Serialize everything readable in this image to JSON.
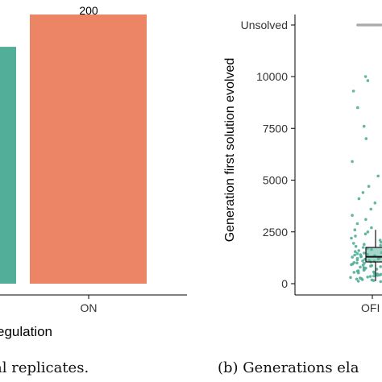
{
  "chart_data": [
    {
      "type": "bar",
      "categories": [
        "",
        "ON"
      ],
      "values": [
        176,
        200
      ],
      "data_labels": [
        "",
        "200"
      ],
      "colors": [
        "#52ae98",
        "#eb8566"
      ],
      "xlabel": "egulation",
      "ylabel": "",
      "ylim": [
        0,
        200
      ],
      "grid": false,
      "caption": "al replicates."
    },
    {
      "type": "scatter",
      "categories": [
        "OFF"
      ],
      "category_label": "OFI",
      "ylabel": "Generation first solution evolved",
      "yticks": [
        0,
        2500,
        5000,
        7500,
        10000
      ],
      "ytick_labels": [
        "0",
        "2500",
        "5000",
        "7500",
        "10000",
        "Unsolved"
      ],
      "unsolved_label": "Unsolved",
      "point_color": "#52ae98",
      "unsolved_color": "#aaaaaa",
      "box": {
        "whisker_low": 120,
        "q1": 1050,
        "median": 1300,
        "q3": 1750,
        "whisker_high": 2600,
        "box_color": "#5bb79d"
      },
      "points_solved": [
        10000,
        9800,
        9300,
        8500,
        7600,
        7000,
        5900,
        5200,
        4700,
        4400,
        4100,
        3900,
        3600,
        3300,
        3100,
        2900,
        2700,
        2600,
        2500,
        2400,
        2300,
        2200,
        2100,
        2000,
        1950,
        1900,
        1850,
        1800,
        1750,
        1700,
        1650,
        1600,
        1550,
        1500,
        1480,
        1450,
        1420,
        1400,
        1380,
        1350,
        1320,
        1300,
        1280,
        1250,
        1220,
        1200,
        1180,
        1150,
        1120,
        1100,
        1080,
        1050,
        1020,
        1000,
        980,
        950,
        920,
        900,
        870,
        850,
        820,
        800,
        780,
        750,
        720,
        700,
        680,
        650,
        620,
        600,
        570,
        550,
        520,
        500,
        470,
        450,
        420,
        400,
        370,
        350,
        320,
        300,
        270,
        250,
        220,
        200,
        180,
        150,
        120,
        100
      ],
      "unsolved_count": 14,
      "ylim": [
        0,
        12600
      ],
      "grid": false,
      "caption": "(b) Generations ela"
    }
  ]
}
